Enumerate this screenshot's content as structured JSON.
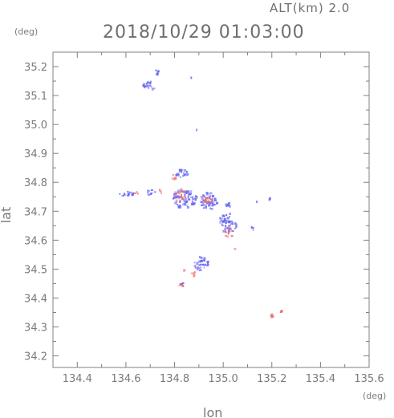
{
  "chart_data": {
    "type": "scatter",
    "title": "2018/10/29 01:03:00",
    "subtitle": "ALT(km) 2.0",
    "xlabel": "lon",
    "ylabel": "lat",
    "xunit": "(deg)",
    "yunit": "(deg)",
    "xlim": [
      134.3,
      135.6
    ],
    "ylim": [
      34.16,
      35.25
    ],
    "xticks": [
      "134.4",
      "134.6",
      "134.8",
      "135.0",
      "135.2",
      "135.4",
      "135.6"
    ],
    "yticks": [
      "34.2",
      "34.3",
      "34.4",
      "34.5",
      "34.6",
      "34.7",
      "34.8",
      "34.9",
      "35.0",
      "35.1",
      "35.2"
    ],
    "grid": false,
    "colors": {
      "negative": "#6a6af0",
      "positive": "#f06a6a",
      "axis": "#7a7a7a"
    },
    "clusters": [
      {
        "sign": "blue",
        "lon": 134.73,
        "lat": 35.18,
        "rx": 0.01,
        "ry": 0.01,
        "n": 6
      },
      {
        "sign": "blue",
        "lon": 134.7,
        "lat": 35.135,
        "rx": 0.03,
        "ry": 0.015,
        "n": 20
      },
      {
        "sign": "blue",
        "lon": 134.87,
        "lat": 35.165,
        "rx": 0.003,
        "ry": 0.003,
        "n": 1
      },
      {
        "sign": "blue",
        "lon": 134.89,
        "lat": 34.98,
        "rx": 0.003,
        "ry": 0.003,
        "n": 1
      },
      {
        "sign": "blue",
        "lon": 134.83,
        "lat": 34.83,
        "rx": 0.025,
        "ry": 0.015,
        "n": 22
      },
      {
        "sign": "red",
        "lon": 134.8,
        "lat": 34.82,
        "rx": 0.015,
        "ry": 0.01,
        "n": 6
      },
      {
        "sign": "blue",
        "lon": 134.6,
        "lat": 34.76,
        "rx": 0.03,
        "ry": 0.01,
        "n": 14
      },
      {
        "sign": "red",
        "lon": 134.645,
        "lat": 34.765,
        "rx": 0.01,
        "ry": 0.008,
        "n": 4
      },
      {
        "sign": "blue",
        "lon": 134.7,
        "lat": 34.765,
        "rx": 0.02,
        "ry": 0.01,
        "n": 10
      },
      {
        "sign": "red",
        "lon": 134.745,
        "lat": 34.77,
        "rx": 0.008,
        "ry": 0.008,
        "n": 3
      },
      {
        "sign": "blue",
        "lon": 134.84,
        "lat": 34.745,
        "rx": 0.05,
        "ry": 0.035,
        "n": 70
      },
      {
        "sign": "red",
        "lon": 134.82,
        "lat": 34.755,
        "rx": 0.03,
        "ry": 0.02,
        "n": 14
      },
      {
        "sign": "blue",
        "lon": 134.94,
        "lat": 34.735,
        "rx": 0.035,
        "ry": 0.03,
        "n": 55
      },
      {
        "sign": "red",
        "lon": 134.93,
        "lat": 34.74,
        "rx": 0.025,
        "ry": 0.02,
        "n": 14
      },
      {
        "sign": "blue",
        "lon": 135.02,
        "lat": 34.725,
        "rx": 0.012,
        "ry": 0.01,
        "n": 8
      },
      {
        "sign": "blue",
        "lon": 135.02,
        "lat": 34.66,
        "rx": 0.04,
        "ry": 0.035,
        "n": 45
      },
      {
        "sign": "red",
        "lon": 135.02,
        "lat": 34.625,
        "rx": 0.02,
        "ry": 0.02,
        "n": 10
      },
      {
        "sign": "blue",
        "lon": 135.12,
        "lat": 34.64,
        "rx": 0.008,
        "ry": 0.006,
        "n": 3
      },
      {
        "sign": "blue",
        "lon": 135.19,
        "lat": 34.74,
        "rx": 0.004,
        "ry": 0.008,
        "n": 6
      },
      {
        "sign": "blue",
        "lon": 135.14,
        "lat": 34.735,
        "rx": 0.004,
        "ry": 0.003,
        "n": 1
      },
      {
        "sign": "red",
        "lon": 135.05,
        "lat": 34.57,
        "rx": 0.004,
        "ry": 0.004,
        "n": 2
      },
      {
        "sign": "blue",
        "lon": 134.91,
        "lat": 34.52,
        "rx": 0.03,
        "ry": 0.025,
        "n": 35
      },
      {
        "sign": "red",
        "lon": 134.88,
        "lat": 34.485,
        "rx": 0.01,
        "ry": 0.008,
        "n": 4
      },
      {
        "sign": "red",
        "lon": 134.84,
        "lat": 34.495,
        "rx": 0.006,
        "ry": 0.005,
        "n": 2
      },
      {
        "sign": "red",
        "lon": 134.825,
        "lat": 34.445,
        "rx": 0.01,
        "ry": 0.006,
        "n": 4
      },
      {
        "sign": "blue",
        "lon": 134.83,
        "lat": 34.45,
        "rx": 0.005,
        "ry": 0.004,
        "n": 2
      },
      {
        "sign": "red",
        "lon": 135.2,
        "lat": 34.34,
        "rx": 0.008,
        "ry": 0.006,
        "n": 5
      },
      {
        "sign": "red",
        "lon": 135.24,
        "lat": 34.355,
        "rx": 0.006,
        "ry": 0.005,
        "n": 4
      }
    ]
  }
}
